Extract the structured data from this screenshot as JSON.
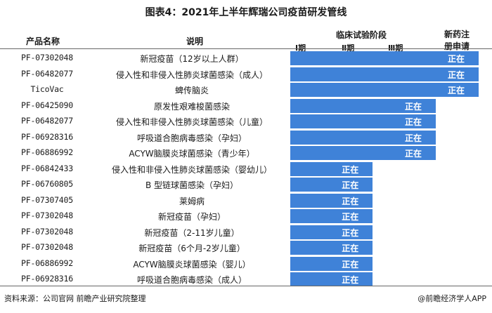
{
  "title": "图表4：2021年上半年辉瑞公司疫苗研发管线",
  "headers": {
    "product": "产品名称",
    "description": "说明",
    "clinical_stage": "临床试验阶段",
    "new_drug_line1": "新药注",
    "new_drug_line2": "册申请",
    "phase1": "Ⅰ期",
    "phase2": "Ⅱ期",
    "phase3": "Ⅲ期"
  },
  "status_label": "正在",
  "colors": {
    "bar": "#3f82d8"
  },
  "stage_ends": {
    "phase2": 0.4375,
    "phase3": 0.7725,
    "filing": 1.0
  },
  "rows": [
    {
      "code": "PF-07302048",
      "description": "新冠疫苗（12岁以上人群）",
      "stage": "filing"
    },
    {
      "code": "PF-06482077",
      "description": "侵入性和非侵入性肺炎球菌感染（成人）",
      "stage": "filing"
    },
    {
      "code": "TicoVac",
      "description": "蜱传脑炎",
      "stage": "filing"
    },
    {
      "code": "PF-06425090",
      "description": "原发性艰难梭菌感染",
      "stage": "phase3"
    },
    {
      "code": "PF-06482077",
      "description": "侵入性和非侵入性肺炎球菌感染（儿童）",
      "stage": "phase3"
    },
    {
      "code": "PF-06928316",
      "description": "呼吸道合胞病毒感染（孕妇）",
      "stage": "phase3"
    },
    {
      "code": "PF-06886992",
      "description": "ACYW脑膜炎球菌感染（青少年）",
      "stage": "phase3"
    },
    {
      "code": "PF-06842433",
      "description": "侵入性和非侵入性肺炎球菌感染（婴幼儿）",
      "stage": "phase2"
    },
    {
      "code": "PF-06760805",
      "description": "B 型链球菌感染（孕妇）",
      "stage": "phase2"
    },
    {
      "code": "PF-07307405",
      "description": "莱姆病",
      "stage": "phase2"
    },
    {
      "code": "PF-07302048",
      "description": "新冠疫苗（孕妇）",
      "stage": "phase2"
    },
    {
      "code": "PF-07302048",
      "description": "新冠疫苗（2-11岁儿童）",
      "stage": "phase2"
    },
    {
      "code": "PF-07302048",
      "description": "新冠疫苗（6个月-2岁儿童）",
      "stage": "phase2"
    },
    {
      "code": "PF-06886992",
      "description": "ACYW脑膜炎球菌感染（婴儿）",
      "stage": "phase2"
    },
    {
      "code": "PF-06928316",
      "description": "呼吸道合胞病毒感染（成人）",
      "stage": "phase2"
    }
  ],
  "footer": {
    "source": "资料来源：公司官网 前瞻产业研究院整理",
    "credit": "@前瞻经济学人APP"
  }
}
